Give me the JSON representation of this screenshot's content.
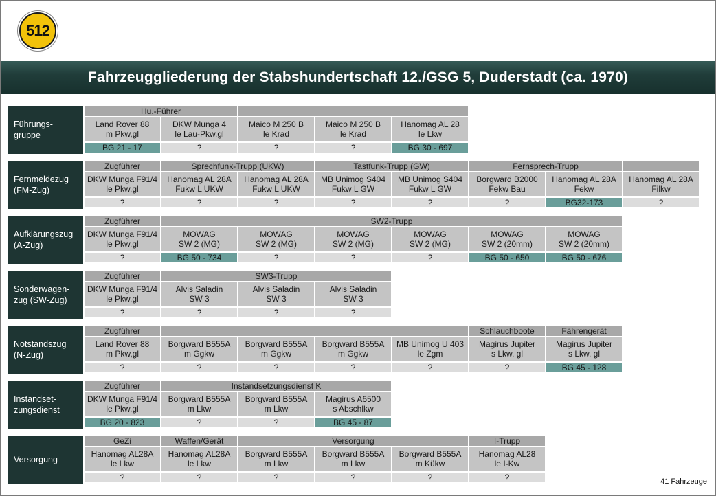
{
  "badge": "512",
  "title": "Fahrzeuggliederung der Stabshundertschaft 12./GSG 5, Duderstadt (ca. 1970)",
  "footer": "41 Fahrzeuge",
  "colors": {
    "label_bg": "#1e3533",
    "header": "#a8a8a8",
    "vehicle": "#c4c4c4",
    "reg": "#dcdcdc",
    "known_reg": "#6a9e9a"
  },
  "groups": [
    {
      "label": "Führungs-\ngruppe",
      "headers": [
        {
          "text": "Hu.-Führer",
          "col": 0,
          "span": 2
        },
        {
          "text": "",
          "col": 2,
          "span": 3
        }
      ],
      "vehicles": [
        {
          "name": "Land Rover 88\nm Pkw,gl",
          "reg": "BG 21 - 17"
        },
        {
          "name": "DKW Munga 4\nle Lau-Pkw,gl",
          "reg": "?"
        },
        {
          "name": "Maico M 250 B\nle Krad",
          "reg": "?"
        },
        {
          "name": "Maico M 250 B\nle Krad",
          "reg": "?"
        },
        {
          "name": "Hanomag AL 28\nle Lkw",
          "reg": "BG 30 - 697"
        }
      ]
    },
    {
      "label": "Fernmeldezug\n(FM-Zug)",
      "headers": [
        {
          "text": "Zugführer",
          "col": 0,
          "span": 1
        },
        {
          "text": "Sprechfunk-Trupp (UKW)",
          "col": 1,
          "span": 2
        },
        {
          "text": "Tastfunk-Trupp (GW)",
          "col": 3,
          "span": 2
        },
        {
          "text": "Fernsprech-Trupp",
          "col": 5,
          "span": 2
        },
        {
          "text": "",
          "col": 7,
          "span": 1
        }
      ],
      "vehicles": [
        {
          "name": "DKW Munga F91/4\nle Pkw,gl",
          "reg": "?"
        },
        {
          "name": "Hanomag AL 28A\nFukw L UKW",
          "reg": "?"
        },
        {
          "name": "Hanomag AL 28A\nFukw L UKW",
          "reg": "?"
        },
        {
          "name": "MB Unimog S404\nFukw L GW",
          "reg": "?"
        },
        {
          "name": "MB Unimog S404\nFukw L GW",
          "reg": "?"
        },
        {
          "name": "Borgward B2000\nFekw Bau",
          "reg": "?"
        },
        {
          "name": "Hanomag AL 28A\nFekw",
          "reg": "BG32-173"
        },
        {
          "name": "Hanomag AL 28A\nFilkw",
          "reg": "?"
        }
      ]
    },
    {
      "label": "Aufklärungszug\n(A-Zug)",
      "headers": [
        {
          "text": "Zugführer",
          "col": 0,
          "span": 1
        },
        {
          "text": "SW2-Trupp",
          "col": 1,
          "span": 6
        }
      ],
      "vehicles": [
        {
          "name": "DKW Munga F91/4\nle Pkw,gl",
          "reg": "?"
        },
        {
          "name": "MOWAG\nSW 2 (MG)",
          "reg": "BG 50 - 734"
        },
        {
          "name": "MOWAG\nSW 2 (MG)",
          "reg": "?"
        },
        {
          "name": "MOWAG\nSW 2 (MG)",
          "reg": "?"
        },
        {
          "name": "MOWAG\nSW 2 (MG)",
          "reg": "?"
        },
        {
          "name": "MOWAG\nSW 2 (20mm)",
          "reg": "BG 50 - 650"
        },
        {
          "name": "MOWAG\nSW 2 (20mm)",
          "reg": "BG 50 - 676"
        }
      ]
    },
    {
      "label": "Sonderwagen-\nzug (SW-Zug)",
      "headers": [
        {
          "text": "Zugführer",
          "col": 0,
          "span": 1
        },
        {
          "text": "SW3-Trupp",
          "col": 1,
          "span": 3
        }
      ],
      "vehicles": [
        {
          "name": "DKW Munga F91/4\nle Pkw,gl",
          "reg": "?"
        },
        {
          "name": "Alvis Saladin\nSW 3",
          "reg": "?"
        },
        {
          "name": "Alvis Saladin\nSW 3",
          "reg": "?"
        },
        {
          "name": "Alvis Saladin\nSW 3",
          "reg": "?"
        }
      ]
    },
    {
      "label": "Notstandszug\n(N-Zug)",
      "headers": [
        {
          "text": "Zugführer",
          "col": 0,
          "span": 1
        },
        {
          "text": "",
          "col": 1,
          "span": 4
        },
        {
          "text": "Schlauchboote",
          "col": 5,
          "span": 1
        },
        {
          "text": "Fährengerät",
          "col": 6,
          "span": 1
        }
      ],
      "vehicles": [
        {
          "name": "Land Rover 88\nm Pkw,gl",
          "reg": "?"
        },
        {
          "name": "Borgward B555A\nm Ggkw",
          "reg": "?"
        },
        {
          "name": "Borgward B555A\nm Ggkw",
          "reg": "?"
        },
        {
          "name": "Borgward B555A\nm Ggkw",
          "reg": "?"
        },
        {
          "name": "MB Unimog U 403\nle Zgm",
          "reg": "?"
        },
        {
          "name": "Magirus Jupiter\ns Lkw, gl",
          "reg": "?"
        },
        {
          "name": "Magirus Jupiter\ns Lkw, gl",
          "reg": "BG 45 - 128"
        }
      ]
    },
    {
      "label": "Instandset-\nzungsdienst",
      "headers": [
        {
          "text": "Zugführer",
          "col": 0,
          "span": 1
        },
        {
          "text": "Instandsetzungsdienst K",
          "col": 1,
          "span": 3
        }
      ],
      "vehicles": [
        {
          "name": "DKW Munga F91/4\nle Pkw,gl",
          "reg": "BG 20 - 823"
        },
        {
          "name": "Borgward B555A\nm Lkw",
          "reg": "?"
        },
        {
          "name": "Borgward B555A\nm Lkw",
          "reg": "?"
        },
        {
          "name": "Magirus A6500\ns Abschlkw",
          "reg": "BG 45 - 87"
        }
      ]
    },
    {
      "label": "Versorgung",
      "headers": [
        {
          "text": "GeZi",
          "col": 0,
          "span": 1
        },
        {
          "text": "Waffen/Gerät",
          "col": 1,
          "span": 1
        },
        {
          "text": "Versorgung",
          "col": 2,
          "span": 3
        },
        {
          "text": "I-Trupp",
          "col": 5,
          "span": 1
        }
      ],
      "vehicles": [
        {
          "name": "Hanomag AL28A\nle Lkw",
          "reg": "?"
        },
        {
          "name": "Hanomag AL28A\nle Lkw",
          "reg": "?"
        },
        {
          "name": "Borgward B555A\nm Lkw",
          "reg": "?"
        },
        {
          "name": "Borgward B555A\nm Lkw",
          "reg": "?"
        },
        {
          "name": "Borgward B555A\nm Kükw",
          "reg": "?"
        },
        {
          "name": "Hanomag AL28\nle I-Kw",
          "reg": "?"
        }
      ]
    }
  ]
}
